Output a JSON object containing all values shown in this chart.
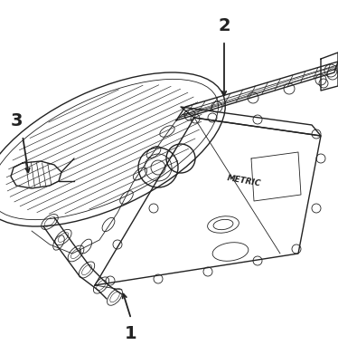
{
  "background_color": "#ffffff",
  "line_color": "#222222",
  "label_color": "#000000",
  "figsize": [
    3.74,
    3.81
  ],
  "dpi": 100
}
